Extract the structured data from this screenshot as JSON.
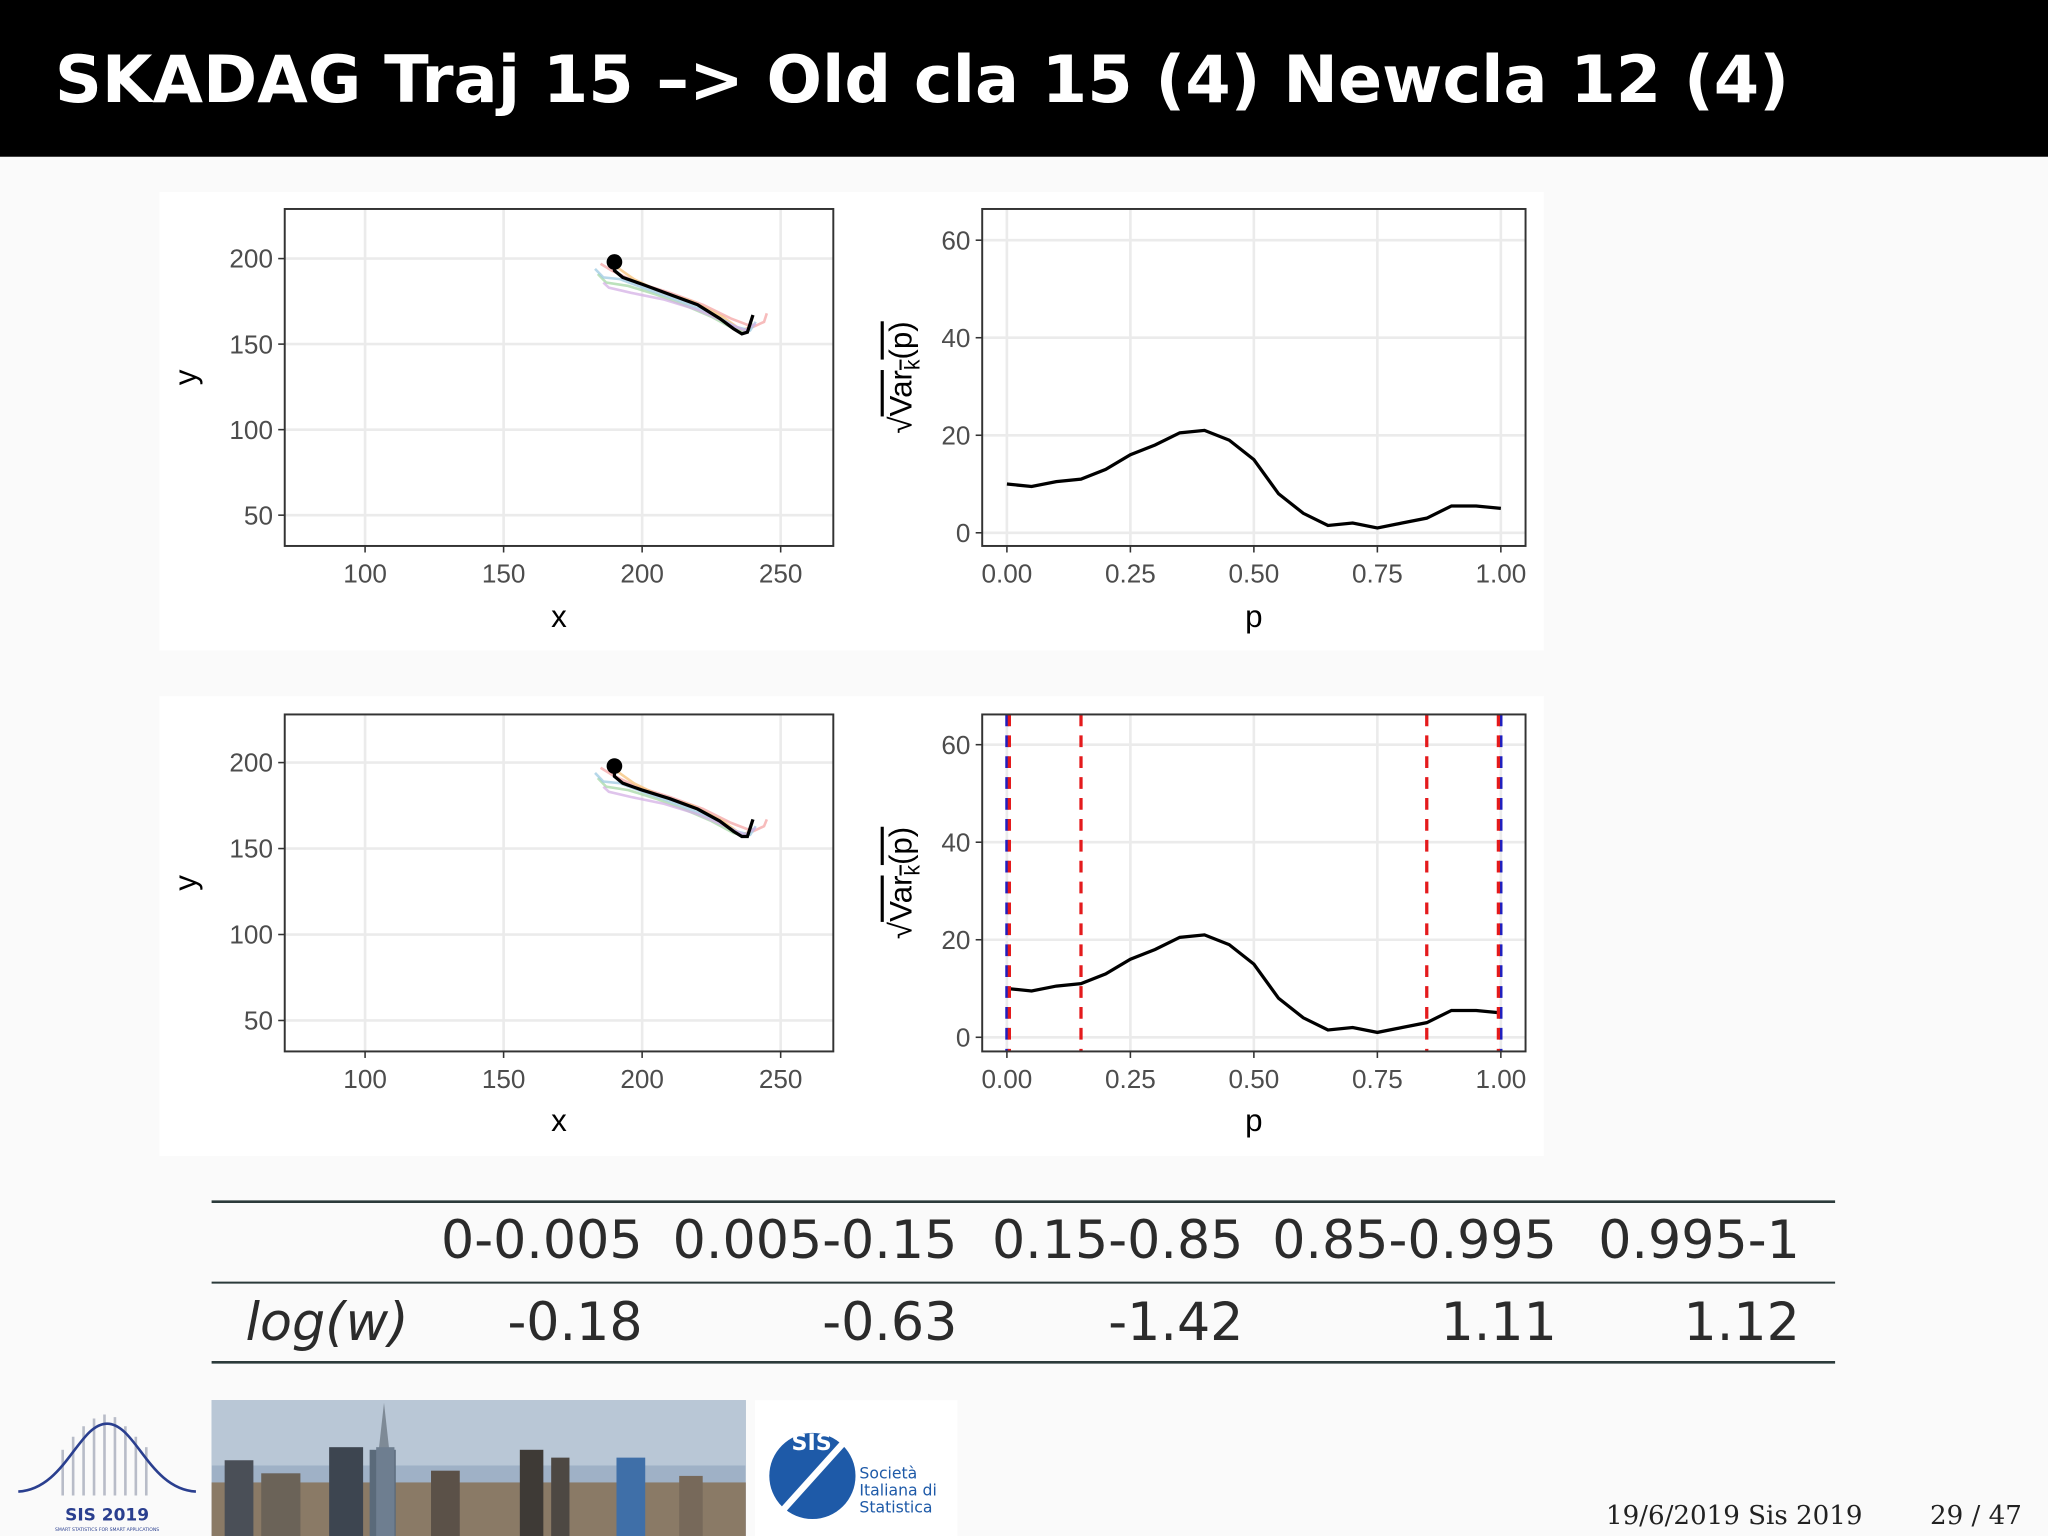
{
  "title": "SKADAG Traj 15 –> Old cla 15 (4) Newcla 12 (4)",
  "chart_data": [
    {
      "type": "path",
      "xlabel": "x",
      "ylabel": "y",
      "xlim": [
        71,
        269
      ],
      "ylim": [
        32,
        229
      ],
      "xticks": [
        100,
        150,
        200,
        250
      ],
      "yticks": [
        50,
        100,
        150,
        200
      ],
      "grid": true,
      "series": [
        {
          "color": "#f4a6a6",
          "x": [
            185,
            189,
            198,
            210,
            222,
            232,
            240,
            244,
            245
          ],
          "y": [
            197,
            193,
            186,
            180,
            173,
            165,
            160,
            163,
            168
          ]
        },
        {
          "color": "#f5c27a",
          "x": [
            188,
            190,
            197,
            206,
            218,
            229,
            236,
            239
          ],
          "y": [
            200,
            196,
            188,
            181,
            175,
            166,
            158,
            160
          ]
        },
        {
          "color": "#a6d8a6",
          "x": [
            184,
            187,
            195,
            205,
            215,
            225,
            233,
            238,
            240
          ],
          "y": [
            191,
            186,
            184,
            179,
            173,
            166,
            159,
            157,
            162
          ]
        },
        {
          "color": "#9ecae1",
          "x": [
            183,
            186,
            192,
            202,
            214,
            226,
            234,
            239,
            241
          ],
          "y": [
            194,
            189,
            188,
            182,
            175,
            167,
            160,
            158,
            163
          ]
        },
        {
          "color": "#d4b0e6",
          "x": [
            186,
            188,
            196,
            208,
            220,
            230,
            237,
            241
          ],
          "y": [
            186,
            183,
            180,
            176,
            170,
            163,
            158,
            162
          ]
        },
        {
          "color": "#000000",
          "x": [
            190,
            190,
            193,
            200,
            210,
            220,
            228,
            233,
            236,
            238,
            239,
            240
          ],
          "y": [
            198,
            193,
            189,
            185,
            179,
            173,
            165,
            159,
            156,
            157,
            162,
            167
          ]
        }
      ],
      "point": {
        "x": 190,
        "y": 198,
        "color": "#000000"
      }
    },
    {
      "type": "line",
      "xlabel": "p",
      "ylabel": {
        "root": "√",
        "base": "Var",
        "sub": "k",
        "end": "(p)"
      },
      "xlim": [
        -0.05,
        1.05
      ],
      "ylim": [
        -2.7,
        66.4
      ],
      "xticks": [
        {
          "value": 0,
          "label": "0.00"
        },
        {
          "value": 0.25,
          "label": "0.25"
        },
        {
          "value": 0.5,
          "label": "0.50"
        },
        {
          "value": 0.75,
          "label": "0.75"
        },
        {
          "value": 1,
          "label": "1.00"
        }
      ],
      "yticks": [
        0,
        20,
        40,
        60
      ],
      "grid": true,
      "color": "#000000",
      "x": [
        0,
        0.05,
        0.1,
        0.15,
        0.2,
        0.25,
        0.3,
        0.35,
        0.4,
        0.45,
        0.5,
        0.55,
        0.6,
        0.65,
        0.7,
        0.75,
        0.8,
        0.85,
        0.9,
        0.95,
        1
      ],
      "values": [
        10,
        9.5,
        10.5,
        11,
        13,
        16,
        18,
        20.5,
        21,
        19,
        15,
        8,
        4,
        1.5,
        2,
        1,
        2,
        3,
        5.5,
        5.5,
        5
      ]
    },
    {
      "type": "path",
      "xlabel": "x",
      "ylabel": "y",
      "xlim": [
        71,
        269
      ],
      "ylim": [
        32,
        228
      ],
      "xticks": [
        100,
        150,
        200,
        250
      ],
      "yticks": [
        50,
        100,
        150,
        200
      ],
      "grid": true,
      "series": [
        {
          "color": "#f4a6a6",
          "x": [
            185,
            189,
            198,
            210,
            222,
            232,
            240,
            244,
            245
          ],
          "y": [
            197,
            193,
            186,
            180,
            173,
            165,
            160,
            163,
            167
          ]
        },
        {
          "color": "#f5c27a",
          "x": [
            188,
            190,
            197,
            206,
            218,
            229,
            236,
            239
          ],
          "y": [
            200,
            196,
            188,
            181,
            175,
            166,
            158,
            160
          ]
        },
        {
          "color": "#a6d8a6",
          "x": [
            184,
            187,
            195,
            205,
            215,
            225,
            233,
            238,
            240
          ],
          "y": [
            191,
            186,
            184,
            179,
            173,
            166,
            159,
            157,
            162
          ]
        },
        {
          "color": "#9ecae1",
          "x": [
            183,
            186,
            192,
            202,
            214,
            226,
            234,
            239,
            241
          ],
          "y": [
            194,
            189,
            188,
            182,
            175,
            167,
            160,
            158,
            163
          ]
        },
        {
          "color": "#d4b0e6",
          "x": [
            186,
            188,
            196,
            208,
            220,
            230,
            237,
            241
          ],
          "y": [
            186,
            183,
            180,
            176,
            170,
            163,
            158,
            162
          ]
        },
        {
          "color": "#000000",
          "x": [
            190,
            190,
            193,
            200,
            210,
            220,
            228,
            233,
            236,
            238,
            239,
            240
          ],
          "y": [
            198,
            192,
            188,
            184,
            179,
            173,
            166,
            160,
            157,
            157,
            162,
            167
          ]
        }
      ],
      "point": {
        "x": 190,
        "y": 198,
        "color": "#000000"
      }
    },
    {
      "type": "line",
      "xlabel": "p",
      "ylabel": {
        "root": "√",
        "base": "Var",
        "sub": "k",
        "end": "(p)"
      },
      "xlim": [
        -0.05,
        1.05
      ],
      "ylim": [
        -2.9,
        66.2
      ],
      "xticks": [
        {
          "value": 0,
          "label": "0.00"
        },
        {
          "value": 0.25,
          "label": "0.25"
        },
        {
          "value": 0.5,
          "label": "0.50"
        },
        {
          "value": 0.75,
          "label": "0.75"
        },
        {
          "value": 1,
          "label": "1.00"
        }
      ],
      "yticks": [
        0,
        20,
        40,
        60
      ],
      "grid": true,
      "color": "#000000",
      "x": [
        0,
        0.05,
        0.1,
        0.15,
        0.2,
        0.25,
        0.3,
        0.35,
        0.4,
        0.45,
        0.5,
        0.55,
        0.6,
        0.65,
        0.7,
        0.75,
        0.8,
        0.85,
        0.9,
        0.95,
        1
      ],
      "values": [
        10,
        9.5,
        10.5,
        11,
        13,
        16,
        18,
        20.5,
        21,
        19,
        15,
        8,
        4,
        1.5,
        2,
        1,
        2,
        3,
        5.5,
        5.5,
        5
      ],
      "vlines": [
        {
          "x": 0,
          "color": "#1f1fbf"
        },
        {
          "x": 1,
          "color": "#1f1fbf"
        },
        {
          "x": 0.005,
          "color": "#e41a1c"
        },
        {
          "x": 0.15,
          "color": "#e41a1c"
        },
        {
          "x": 0.85,
          "color": "#e41a1c"
        },
        {
          "x": 0.995,
          "color": "#e41a1c"
        }
      ]
    }
  ],
  "table": {
    "header": [
      "0-0.005",
      "0.005-0.15",
      "0.15-0.85",
      "0.85-0.995",
      "0.995-1"
    ],
    "rows": [
      {
        "label": "log(w)",
        "values": [
          -0.18,
          -0.63,
          -1.42,
          1.11,
          1.12
        ]
      }
    ]
  },
  "footer": {
    "logo_left": "SIS 2019",
    "logo_left_tagline": "SMART STATISTICS FOR SMART APPLICATIONS",
    "logo_sis": "SIS",
    "logo_sis_text": [
      "Società",
      "Italiana di",
      "Statistica"
    ],
    "date": "19/6/2019 Sis 2019",
    "page": "29 / 47"
  }
}
